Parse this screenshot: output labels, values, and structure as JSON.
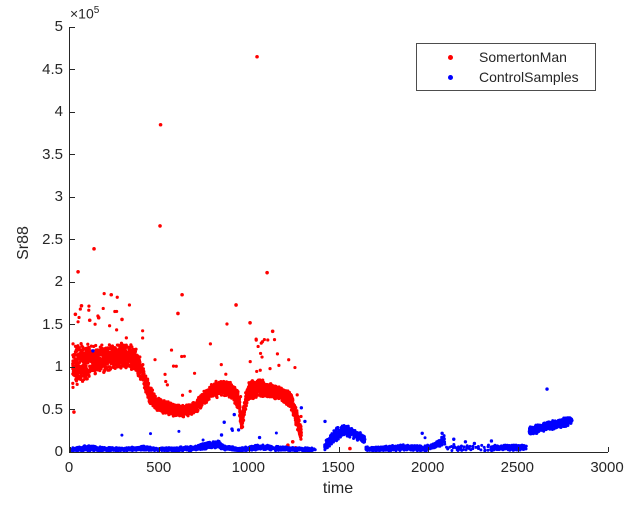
{
  "chart_data": {
    "type": "scatter",
    "title": "",
    "xlabel": "time",
    "ylabel": "Sr88",
    "y_multiplier_base": "×10",
    "y_multiplier_exp": "5",
    "xlim": [
      0,
      3000
    ],
    "ylim_e5": [
      0,
      5
    ],
    "x_ticks": [
      "0",
      "500",
      "1000",
      "1500",
      "2000",
      "2500",
      "3000"
    ],
    "y_ticks": [
      "0",
      "0.5",
      "1",
      "1.5",
      "2",
      "2.5",
      "3",
      "3.5",
      "4",
      "4.5",
      "5"
    ],
    "grid": "off",
    "axis_color": "#262626",
    "background_color": "#ffffff",
    "legend": {
      "position": "top-right",
      "border_color": "#4d4d4d",
      "entries": [
        {
          "name": "SomertonMan",
          "color": "#ff0000",
          "marker": "dot"
        },
        {
          "name": "ControlSamples",
          "color": "#0000ff",
          "marker": "dot"
        }
      ]
    },
    "series": [
      {
        "name": "SomertonMan",
        "color": "#ff0000",
        "marker_radius_px": 1.6,
        "values_unit": "1e5",
        "bands": [
          {
            "t_range": [
              15,
              1290
            ],
            "count": 3400,
            "anchors": [
              [
                15,
                1.0,
                0.3
              ],
              [
                60,
                1.05,
                0.25
              ],
              [
                120,
                1.08,
                0.2
              ],
              [
                200,
                1.1,
                0.17
              ],
              [
                300,
                1.14,
                0.16
              ],
              [
                360,
                1.1,
                0.15
              ],
              [
                400,
                0.95,
                0.13
              ],
              [
                440,
                0.7,
                0.11
              ],
              [
                480,
                0.57,
                0.09
              ],
              [
                560,
                0.5,
                0.08
              ],
              [
                640,
                0.48,
                0.07
              ],
              [
                700,
                0.52,
                0.08
              ],
              [
                740,
                0.62,
                0.09
              ],
              [
                790,
                0.72,
                0.1
              ],
              [
                850,
                0.76,
                0.1
              ],
              [
                900,
                0.73,
                0.1
              ],
              [
                940,
                0.6,
                0.12
              ],
              [
                958,
                0.32,
                0.1
              ],
              [
                975,
                0.55,
                0.12
              ],
              [
                1000,
                0.72,
                0.12
              ],
              [
                1060,
                0.76,
                0.11
              ],
              [
                1120,
                0.72,
                0.1
              ],
              [
                1180,
                0.68,
                0.09
              ],
              [
                1230,
                0.62,
                0.1
              ],
              [
                1262,
                0.4,
                0.14
              ],
              [
                1290,
                0.22,
                0.1
              ]
            ],
            "halo_prob": 0.013,
            "halo_boost": [
              0.15,
              0.75
            ]
          }
        ],
        "outliers": [
          [
            22,
            0.47
          ],
          [
            30,
            1.62
          ],
          [
            45,
            2.12
          ],
          [
            64,
            1.72
          ],
          [
            110,
            1.55
          ],
          [
            134,
            2.39
          ],
          [
            160,
            1.58
          ],
          [
            230,
            1.85
          ],
          [
            290,
            1.56
          ],
          [
            502,
            2.66
          ],
          [
            505,
            3.85
          ],
          [
            602,
            1.63
          ],
          [
            625,
            1.85
          ],
          [
            926,
            1.73
          ],
          [
            1004,
            1.52
          ],
          [
            1043,
            4.65
          ],
          [
            1099,
            2.11
          ],
          [
            1130,
            1.42
          ],
          [
            1215,
            0.08
          ],
          [
            1242,
            0.12
          ],
          [
            1258,
            0.05
          ],
          [
            1561,
            0.04
          ]
        ]
      },
      {
        "name": "ControlSamples",
        "color": "#0000ff",
        "marker_radius_px": 1.5,
        "values_unit": "1e5",
        "bands": [
          {
            "t_range": [
              10,
              1370
            ],
            "count": 1700,
            "anchors": [
              [
                10,
                0.03,
                0.025
              ],
              [
                100,
                0.045,
                0.035
              ],
              [
                200,
                0.035,
                0.025
              ],
              [
                300,
                0.03,
                0.02
              ],
              [
                400,
                0.045,
                0.03
              ],
              [
                500,
                0.03,
                0.02
              ],
              [
                600,
                0.035,
                0.025
              ],
              [
                700,
                0.045,
                0.03
              ],
              [
                780,
                0.085,
                0.05
              ],
              [
                825,
                0.09,
                0.05
              ],
              [
                860,
                0.05,
                0.03
              ],
              [
                950,
                0.03,
                0.02
              ],
              [
                1050,
                0.055,
                0.035
              ],
              [
                1150,
                0.045,
                0.03
              ],
              [
                1250,
                0.035,
                0.022
              ],
              [
                1370,
                0.03,
                0.02
              ]
            ],
            "halo_prob": 0.004,
            "halo_boost": [
              0.05,
              0.25
            ]
          },
          {
            "t_range": [
              1420,
              1645
            ],
            "count": 330,
            "anchors": [
              [
                1420,
                0.07,
                0.055
              ],
              [
                1455,
                0.15,
                0.08
              ],
              [
                1495,
                0.23,
                0.09
              ],
              [
                1530,
                0.26,
                0.07
              ],
              [
                1570,
                0.23,
                0.07
              ],
              [
                1610,
                0.19,
                0.06
              ],
              [
                1645,
                0.14,
                0.05
              ]
            ],
            "halo_prob": 0,
            "halo_boost": [
              0,
              0
            ]
          },
          {
            "t_range": [
              1650,
              2090
            ],
            "count": 540,
            "anchors": [
              [
                1650,
                0.035,
                0.03
              ],
              [
                1760,
                0.04,
                0.03
              ],
              [
                1860,
                0.055,
                0.04
              ],
              [
                1910,
                0.045,
                0.035
              ],
              [
                1990,
                0.045,
                0.035
              ],
              [
                2050,
                0.09,
                0.05
              ],
              [
                2090,
                0.15,
                0.06
              ]
            ],
            "halo_prob": 0.003,
            "halo_boost": [
              0.05,
              0.15
            ]
          },
          {
            "t_range": [
              2095,
              2340
            ],
            "count": 45,
            "anchors": [
              [
                2095,
                0.05,
                0.045
              ],
              [
                2340,
                0.05,
                0.045
              ]
            ],
            "halo_prob": 0,
            "halo_boost": [
              0,
              0
            ]
          },
          {
            "t_range": [
              2345,
              2545
            ],
            "count": 280,
            "anchors": [
              [
                2345,
                0.045,
                0.032
              ],
              [
                2440,
                0.055,
                0.038
              ],
              [
                2545,
                0.05,
                0.032
              ]
            ],
            "halo_prob": 0,
            "halo_boost": [
              0,
              0
            ]
          },
          {
            "t_range": [
              2560,
              2800
            ],
            "count": 430,
            "anchors": [
              [
                2560,
                0.25,
                0.055
              ],
              [
                2620,
                0.28,
                0.06
              ],
              [
                2680,
                0.31,
                0.06
              ],
              [
                2740,
                0.34,
                0.06
              ],
              [
                2800,
                0.37,
                0.05
              ]
            ],
            "halo_prob": 0,
            "halo_boost": [
              0,
              0
            ]
          }
        ],
        "outliers": [
          [
            128,
            1.19
          ],
          [
            845,
            0.2
          ],
          [
            860,
            0.35
          ],
          [
            903,
            0.27
          ],
          [
            916,
            0.44
          ],
          [
            940,
            0.26
          ],
          [
            1057,
            0.17
          ],
          [
            1290,
            0.52
          ],
          [
            1310,
            0.36
          ],
          [
            1422,
            0.36
          ],
          [
            1964,
            0.22
          ],
          [
            2075,
            0.22
          ],
          [
            2140,
            0.15
          ],
          [
            2205,
            0.12
          ],
          [
            2255,
            0.1
          ],
          [
            2350,
            0.13
          ],
          [
            2660,
            0.74
          ]
        ]
      }
    ]
  }
}
